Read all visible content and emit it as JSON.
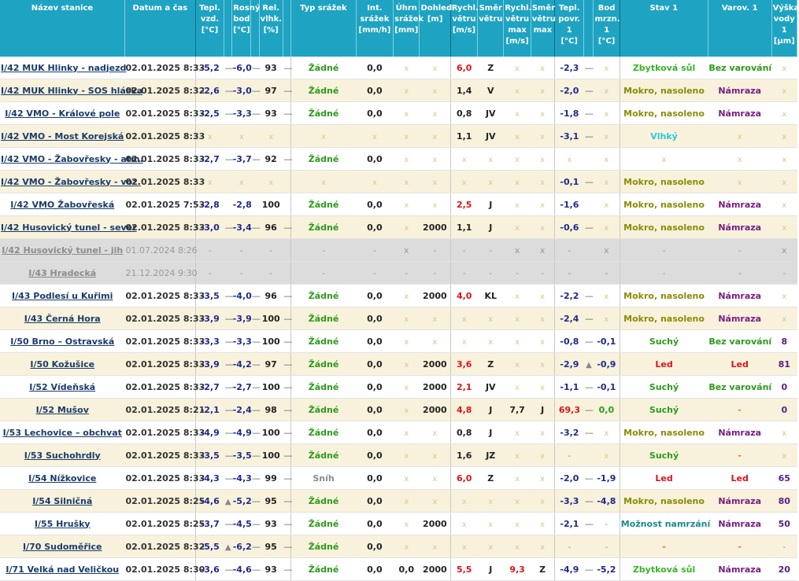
{
  "headers": [
    {
      "key": "station",
      "label": "Název stanice"
    },
    {
      "key": "time",
      "label": "Datum a čas"
    },
    {
      "key": "temp",
      "label": "Tepl.\nvzd.\n[°C]"
    },
    {
      "key": "temp_trend",
      "label": ""
    },
    {
      "key": "dew",
      "label": "Rosný\nbod\n[°C]"
    },
    {
      "key": "dew_trend",
      "label": ""
    },
    {
      "key": "hum",
      "label": "Rel.\nvlhk.\n[%]"
    },
    {
      "key": "hum_trend",
      "label": ""
    },
    {
      "key": "precip_type",
      "label": "Typ srážek"
    },
    {
      "key": "precip_int",
      "label": "Int.\nsrážek\n[mm/h]"
    },
    {
      "key": "precip_sum",
      "label": "Úhrn\nsrážek\n[mm]"
    },
    {
      "key": "visibility",
      "label": "Dohled.\n[m]"
    },
    {
      "key": "wind_speed",
      "label": "Rychl.\nvětru\n[m/s]"
    },
    {
      "key": "wind_dir",
      "label": "Směr\nvětru"
    },
    {
      "key": "wind_max",
      "label": "Rychl.\nvětru\nmax\n[m/s]"
    },
    {
      "key": "wind_max_dir",
      "label": "Směr\nvětru\nmax"
    },
    {
      "key": "surf",
      "label": "Tepl.\npovr. 1\n[°C]"
    },
    {
      "key": "surf_trend",
      "label": ""
    },
    {
      "key": "freeze",
      "label": "Bod\nmrzn.\n1 [°C]"
    },
    {
      "key": "state",
      "label": "Stav 1"
    },
    {
      "key": "warn",
      "label": "Varov. 1"
    },
    {
      "key": "water",
      "label": "Výška\nvody\n1\n[µm]"
    }
  ],
  "rows": [
    {
      "station": "I/42 MUK Hlinky - nadjezd",
      "time": "02.01.2025 8:33",
      "temp": "-5,2",
      "temp_t": "—",
      "dew": "-6,0",
      "dew_t": "—",
      "hum": "93",
      "hum_t": "—",
      "ptype": "Žádné",
      "pint": "0,0",
      "psum": "x",
      "vis": "x",
      "ws": "6,0",
      "ws_c": "red",
      "wd": "Z",
      "wm": "x",
      "wmd": "x",
      "surf": "-2,3",
      "surf_t": "—",
      "frz": "x",
      "state": "Zbytková sůl",
      "state_c": "st-lime",
      "warn": "Bez varování",
      "warn_c": "w-green",
      "water": "x"
    },
    {
      "station": "I/42 MUK Hlinky - SOS hláska",
      "time": "02.01.2025 8:32",
      "temp": "-2,6",
      "temp_t": "—",
      "dew": "-3,0",
      "dew_t": "—",
      "hum": "97",
      "hum_t": "—",
      "ptype": "Žádné",
      "pint": "0,0",
      "psum": "x",
      "vis": "x",
      "ws": "1,4",
      "ws_c": "blk",
      "wd": "V",
      "wm": "x",
      "wmd": "x",
      "surf": "-2,0",
      "surf_t": "—",
      "frz": "x",
      "state": "Mokro, nasoleno",
      "state_c": "st-olive",
      "warn": "Námraza",
      "warn_c": "w-purple",
      "water": "x"
    },
    {
      "station": "I/42 VMO - Králové pole",
      "time": "02.01.2025 8:33",
      "temp": "-2,5",
      "temp_t": "—",
      "dew": "-3,3",
      "dew_t": "—",
      "hum": "93",
      "hum_t": "—",
      "ptype": "Žádné",
      "pint": "0,0",
      "psum": "x",
      "vis": "x",
      "ws": "0,8",
      "ws_c": "blk",
      "wd": "JV",
      "wm": "x",
      "wmd": "x",
      "surf": "-1,8",
      "surf_t": "—",
      "frz": "x",
      "state": "Mokro, nasoleno",
      "state_c": "st-olive",
      "warn": "Námraza",
      "warn_c": "w-purple",
      "water": "x"
    },
    {
      "station": "I/42 VMO - Most Korejská",
      "time": "02.01.2025 8:33",
      "temp": "x",
      "temp_t": "",
      "dew": "x",
      "dew_t": "",
      "hum": "x",
      "hum_t": "",
      "ptype": "x",
      "pint": "x",
      "psum": "x",
      "vis": "x",
      "ws": "1,1",
      "ws_c": "blk",
      "wd": "JV",
      "wm": "x",
      "wmd": "x",
      "surf": "-3,1",
      "surf_t": "—",
      "frz": "x",
      "state": "Vlhký",
      "state_c": "st-cyan",
      "warn": "x",
      "warn_c": "x",
      "water": "x"
    },
    {
      "station": "I/42 VMO - Žabovřesky - atm.",
      "time": "02.01.2025 8:33",
      "temp": "-2,7",
      "temp_t": "—",
      "dew": "-3,7",
      "dew_t": "—",
      "hum": "92",
      "hum_t": "—",
      "ptype": "Žádné",
      "pint": "0,0",
      "psum": "x",
      "vis": "x",
      "ws": "x",
      "ws_c": "x",
      "wd": "x",
      "wm": "x",
      "wmd": "x",
      "surf": "x",
      "surf_t": "",
      "frz": "x",
      "state": "x",
      "state_c": "x",
      "warn": "x",
      "warn_c": "x",
      "water": "x"
    },
    {
      "station": "I/42 VMO - Žabovřesky - voz.",
      "time": "02.01.2025 8:33",
      "temp": "x",
      "temp_t": "",
      "dew": "x",
      "dew_t": "",
      "hum": "x",
      "hum_t": "",
      "ptype": "x",
      "pint": "x",
      "psum": "x",
      "vis": "x",
      "ws": "x",
      "ws_c": "x",
      "wd": "x",
      "wm": "x",
      "wmd": "x",
      "surf": "-0,1",
      "surf_t": "—",
      "frz": "x",
      "state": "Mokro, nasoleno",
      "state_c": "st-olive",
      "warn": "x",
      "warn_c": "x",
      "water": "x"
    },
    {
      "station": "I/42 VMO Žabovřeská",
      "time": "02.01.2025 7:53",
      "temp": "-2,8",
      "temp_t": "",
      "dew": "-2,8",
      "dew_t": "",
      "hum": "100",
      "hum_t": "",
      "ptype": "Žádné",
      "pint": "0,0",
      "psum": "x",
      "vis": "x",
      "ws": "2,5",
      "ws_c": "red",
      "wd": "J",
      "wm": "x",
      "wmd": "x",
      "surf": "-1,6",
      "surf_t": "",
      "frz": "x",
      "state": "Mokro, nasoleno",
      "state_c": "st-olive",
      "warn": "Námraza",
      "warn_c": "w-purple",
      "water": "x"
    },
    {
      "station": "I/42 Husovický tunel - sever",
      "time": "02.01.2025 8:33",
      "temp": "-3,0",
      "temp_t": "—",
      "dew": "-3,4",
      "dew_t": "—",
      "hum": "96",
      "hum_t": "—",
      "ptype": "Žádné",
      "pint": "0,0",
      "psum": "x",
      "vis": "2000",
      "ws": "1,1",
      "ws_c": "blk",
      "wd": "J",
      "wm": "x",
      "wmd": "x",
      "surf": "-0,6",
      "surf_t": "—",
      "frz": "x",
      "state": "Mokro, nasoleno",
      "state_c": "st-olive",
      "warn": "Námraza",
      "warn_c": "w-purple",
      "water": "x"
    },
    {
      "inactive": true,
      "station": "I/42 Husovický tunel - jih",
      "time": "01.07.2024 8:26",
      "temp": "-",
      "temp_t": "",
      "dew": "-",
      "dew_t": "",
      "hum": "-",
      "hum_t": "",
      "ptype": "-",
      "pint": "-",
      "psum": "x",
      "vis": "-",
      "ws": "-",
      "ws_c": "gray",
      "wd": "-",
      "wm": "x",
      "wmd": "x",
      "surf": "-",
      "surf_t": "",
      "frz": "x",
      "state": "-",
      "state_c": "gray",
      "warn": "-",
      "warn_c": "gray",
      "water": "x"
    },
    {
      "inactive": true,
      "station": "I/43 Hradecká",
      "time": "21.12.2024 9:30",
      "temp": "-",
      "temp_t": "",
      "dew": "-",
      "dew_t": "",
      "hum": "-",
      "hum_t": "",
      "ptype": "-",
      "pint": "-",
      "psum": "-",
      "vis": "-",
      "ws": "-",
      "ws_c": "gray",
      "wd": "-",
      "wm": "-",
      "wmd": "-",
      "surf": "-",
      "surf_t": "",
      "frz": "-",
      "state": "-",
      "state_c": "gray",
      "warn": "-",
      "warn_c": "gray",
      "water": "-"
    },
    {
      "station": "I/43 Podlesí u Kuřimi",
      "time": "02.01.2025 8:33",
      "temp": "-3,5",
      "temp_t": "—",
      "dew": "-4,0",
      "dew_t": "—",
      "hum": "96",
      "hum_t": "—",
      "ptype": "Žádné",
      "pint": "0,0",
      "psum": "x",
      "vis": "2000",
      "ws": "4,0",
      "ws_c": "red",
      "wd": "KL",
      "wm": "x",
      "wmd": "x",
      "surf": "-2,2",
      "surf_t": "—",
      "frz": "x",
      "state": "Mokro, nasoleno",
      "state_c": "st-olive",
      "warn": "Námraza",
      "warn_c": "w-purple",
      "water": "x"
    },
    {
      "station": "I/43 Černá Hora",
      "time": "02.01.2025 8:33",
      "temp": "-3,9",
      "temp_t": "—",
      "dew": "-3,9",
      "dew_t": "—",
      "hum": "100",
      "hum_t": "—",
      "ptype": "Žádné",
      "pint": "0,0",
      "psum": "x",
      "vis": "x",
      "ws": "x",
      "ws_c": "x",
      "wd": "x",
      "wm": "x",
      "wmd": "x",
      "surf": "-2,4",
      "surf_t": "—",
      "frz": "x",
      "state": "Mokro, nasoleno",
      "state_c": "st-olive",
      "warn": "Námraza",
      "warn_c": "w-purple",
      "water": "x"
    },
    {
      "station": "I/50 Brno – Ostravská",
      "time": "02.01.2025 8:33",
      "temp": "-3,3",
      "temp_t": "—",
      "dew": "-3,3",
      "dew_t": "—",
      "hum": "100",
      "hum_t": "—",
      "ptype": "Žádné",
      "pint": "0,0",
      "psum": "x",
      "vis": "x",
      "ws": "x",
      "ws_c": "x",
      "wd": "x",
      "wm": "x",
      "wmd": "x",
      "surf": "-0,8",
      "surf_t": "—",
      "frz": "-0,1",
      "state": "Suchý",
      "state_c": "st-green",
      "warn": "Bez varování",
      "warn_c": "w-green",
      "water": "8"
    },
    {
      "station": "I/50 Kožušice",
      "time": "02.01.2025 8:33",
      "temp": "-3,9",
      "temp_t": "—",
      "dew": "-4,2",
      "dew_t": "—",
      "hum": "97",
      "hum_t": "—",
      "ptype": "Žádné",
      "pint": "0,0",
      "psum": "x",
      "vis": "2000",
      "ws": "3,6",
      "ws_c": "red",
      "wd": "Z",
      "wm": "x",
      "wmd": "x",
      "surf": "-2,9",
      "surf_t": "▲",
      "frz": "-0,9",
      "state": "Led",
      "state_c": "st-red",
      "warn": "Led",
      "warn_c": "w-red",
      "water": "81"
    },
    {
      "station": "I/52 Vídeňská",
      "time": "02.01.2025 8:33",
      "temp": "-2,7",
      "temp_t": "—",
      "dew": "-2,7",
      "dew_t": "—",
      "hum": "100",
      "hum_t": "—",
      "ptype": "Žádné",
      "pint": "0,0",
      "psum": "x",
      "vis": "2000",
      "ws": "2,1",
      "ws_c": "red",
      "wd": "JV",
      "wm": "x",
      "wmd": "x",
      "surf": "-1,1",
      "surf_t": "—",
      "frz": "-0,1",
      "state": "Suchý",
      "state_c": "st-green",
      "warn": "Bez varování",
      "warn_c": "w-green",
      "water": "0"
    },
    {
      "station": "I/52 Mušov",
      "time": "02.01.2025 8:21",
      "temp": "-2,1",
      "temp_t": "—",
      "dew": "-2,4",
      "dew_t": "—",
      "hum": "98",
      "hum_t": "—",
      "ptype": "Žádné",
      "pint": "0,0",
      "psum": "x",
      "vis": "2000",
      "ws": "4,8",
      "ws_c": "red",
      "wd": "J",
      "wm": "7,7",
      "wmd": "J",
      "surf": "69,3",
      "surf_c": "red",
      "surf_t": "—",
      "frz": "0,0",
      "frz_c": "green",
      "state": "Suchý",
      "state_c": "st-green",
      "warn": "-",
      "warn_c": "w-orange",
      "water": "0"
    },
    {
      "station": "I/53 Lechovice – obchvat",
      "time": "02.01.2025 8:33",
      "temp": "-4,9",
      "temp_t": "—",
      "dew": "-4,9",
      "dew_t": "—",
      "hum": "100",
      "hum_t": "—",
      "ptype": "Žádné",
      "pint": "0,0",
      "psum": "x",
      "vis": "x",
      "ws": "0,8",
      "ws_c": "blk",
      "wd": "J",
      "wm": "x",
      "wmd": "x",
      "surf": "-3,2",
      "surf_t": "—",
      "frz": "x",
      "state": "Mokro, nasoleno",
      "state_c": "st-olive",
      "warn": "Námraza",
      "warn_c": "w-purple",
      "water": "x"
    },
    {
      "station": "I/53 Suchohrdly",
      "time": "02.01.2025 8:33",
      "temp": "-3,5",
      "temp_t": "—",
      "dew": "-3,5",
      "dew_t": "—",
      "hum": "100",
      "hum_t": "—",
      "ptype": "Žádné",
      "pint": "0,0",
      "psum": "x",
      "vis": "x",
      "ws": "1,6",
      "ws_c": "blk",
      "wd": "JZ",
      "wm": "x",
      "wmd": "x",
      "surf": "-",
      "surf_t": "",
      "frz": "x",
      "state": "Suchý",
      "state_c": "st-green",
      "warn": "-",
      "warn_c": "w-orange",
      "water": "x"
    },
    {
      "station": "I/54 Nížkovice",
      "time": "02.01.2025 8:33",
      "temp": "-4,3",
      "temp_t": "—",
      "dew": "-4,3",
      "dew_t": "—",
      "hum": "99",
      "hum_t": "—",
      "ptype": "Sníh",
      "ptype_c": "sn",
      "pint": "0,0",
      "psum": "x",
      "vis": "x",
      "ws": "6,0",
      "ws_c": "red",
      "wd": "Z",
      "wm": "x",
      "wmd": "x",
      "surf": "-2,0",
      "surf_t": "—",
      "frz": "-1,9",
      "state": "Led",
      "state_c": "st-red",
      "warn": "Led",
      "warn_c": "w-red",
      "water": "65"
    },
    {
      "station": "I/54 Silničná",
      "time": "02.01.2025 8:25",
      "temp": "-4,6",
      "temp_t": "▲",
      "dew": "-5,2",
      "dew_t": "—",
      "hum": "95",
      "hum_t": "—",
      "ptype": "Žádné",
      "pint": "0,0",
      "psum": "x",
      "vis": "x",
      "ws": "x",
      "ws_c": "x",
      "wd": "x",
      "wm": "x",
      "wmd": "x",
      "surf": "-3,3",
      "surf_t": "—",
      "frz": "-4,8",
      "state": "Mokro, nasoleno",
      "state_c": "st-olive",
      "warn": "Námraza",
      "warn_c": "w-purple",
      "water": "80"
    },
    {
      "station": "I/55 Hrušky",
      "time": "02.01.2025 8:25",
      "temp": "-3,7",
      "temp_t": "—",
      "dew": "-4,5",
      "dew_t": "—",
      "hum": "93",
      "hum_t": "—",
      "ptype": "Žádné",
      "pint": "0,0",
      "psum": "x",
      "vis": "2000",
      "ws": "x",
      "ws_c": "x",
      "wd": "x",
      "wm": "x",
      "wmd": "x",
      "surf": "-2,1",
      "surf_t": "—",
      "frz": "-",
      "state": "Možnost namrzání",
      "state_c": "st-teal",
      "warn": "Námraza",
      "warn_c": "w-purple",
      "water": "50"
    },
    {
      "station": "I/70 Sudoměřice",
      "time": "02.01.2025 8:32",
      "temp": "-5,5",
      "temp_t": "▲",
      "dew": "-6,2",
      "dew_t": "—",
      "hum": "95",
      "hum_t": "—",
      "ptype": "Žádné",
      "pint": "0,0",
      "psum": "x",
      "vis": "x",
      "ws": "x",
      "ws_c": "x",
      "wd": "x",
      "wm": "x",
      "wmd": "x",
      "surf": "-",
      "surf_t": "",
      "frz": "-",
      "state": "-",
      "state_c": "w-orange",
      "warn": "-",
      "warn_c": "w-orange",
      "water": "-"
    },
    {
      "station": "I/71 Velká nad Veličkou",
      "time": "02.01.2025 8:30",
      "temp": "-3,6",
      "temp_t": "—",
      "dew": "-4,6",
      "dew_t": "—",
      "hum": "93",
      "hum_t": "—",
      "ptype": "Žádné",
      "pint": "0,0",
      "psum": "0,0",
      "vis": "2000",
      "ws": "5,5",
      "ws_c": "red",
      "wd": "J",
      "wm": "9,3",
      "wm_c": "red",
      "wmd": "Z",
      "surf": "-4,9",
      "surf_t": "—",
      "frz": "-5,2",
      "state": "Zbytková sůl",
      "state_c": "st-lime",
      "warn": "Námraza",
      "warn_c": "w-purple",
      "water": "20"
    }
  ]
}
